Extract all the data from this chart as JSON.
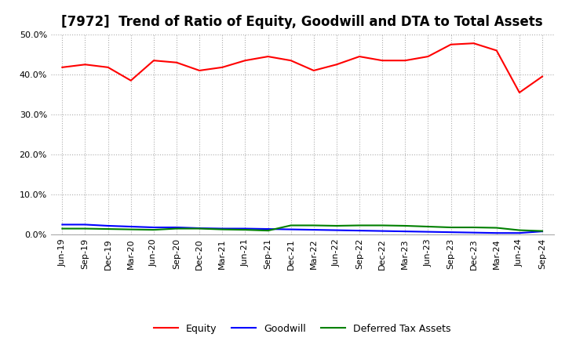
{
  "title": "[7972]  Trend of Ratio of Equity, Goodwill and DTA to Total Assets",
  "x_labels": [
    "Jun-19",
    "Sep-19",
    "Dec-19",
    "Mar-20",
    "Jun-20",
    "Sep-20",
    "Dec-20",
    "Mar-21",
    "Jun-21",
    "Sep-21",
    "Dec-21",
    "Mar-22",
    "Jun-22",
    "Sep-22",
    "Dec-22",
    "Mar-23",
    "Jun-23",
    "Sep-23",
    "Dec-23",
    "Mar-24",
    "Jun-24",
    "Sep-24"
  ],
  "equity": [
    41.8,
    42.5,
    41.8,
    38.5,
    43.5,
    43.0,
    41.0,
    41.8,
    43.5,
    44.5,
    43.5,
    41.0,
    42.5,
    44.5,
    43.5,
    43.5,
    44.5,
    47.5,
    47.8,
    46.0,
    35.5,
    39.5
  ],
  "goodwill": [
    2.5,
    2.5,
    2.2,
    2.0,
    1.8,
    1.8,
    1.6,
    1.5,
    1.5,
    1.4,
    1.3,
    1.2,
    1.1,
    1.0,
    0.9,
    0.8,
    0.7,
    0.6,
    0.5,
    0.4,
    0.4,
    0.8
  ],
  "dta": [
    1.5,
    1.5,
    1.4,
    1.3,
    1.2,
    1.5,
    1.5,
    1.3,
    1.2,
    1.0,
    2.3,
    2.3,
    2.2,
    2.3,
    2.3,
    2.2,
    2.0,
    1.8,
    1.8,
    1.7,
    1.1,
    0.9
  ],
  "equity_color": "#FF0000",
  "goodwill_color": "#0000FF",
  "dta_color": "#008000",
  "ylim": [
    0,
    50
  ],
  "yticks": [
    0,
    10,
    20,
    30,
    40,
    50
  ],
  "background_color": "#FFFFFF",
  "grid_color": "#999999",
  "title_fontsize": 12,
  "tick_fontsize": 8,
  "legend_fontsize": 9
}
